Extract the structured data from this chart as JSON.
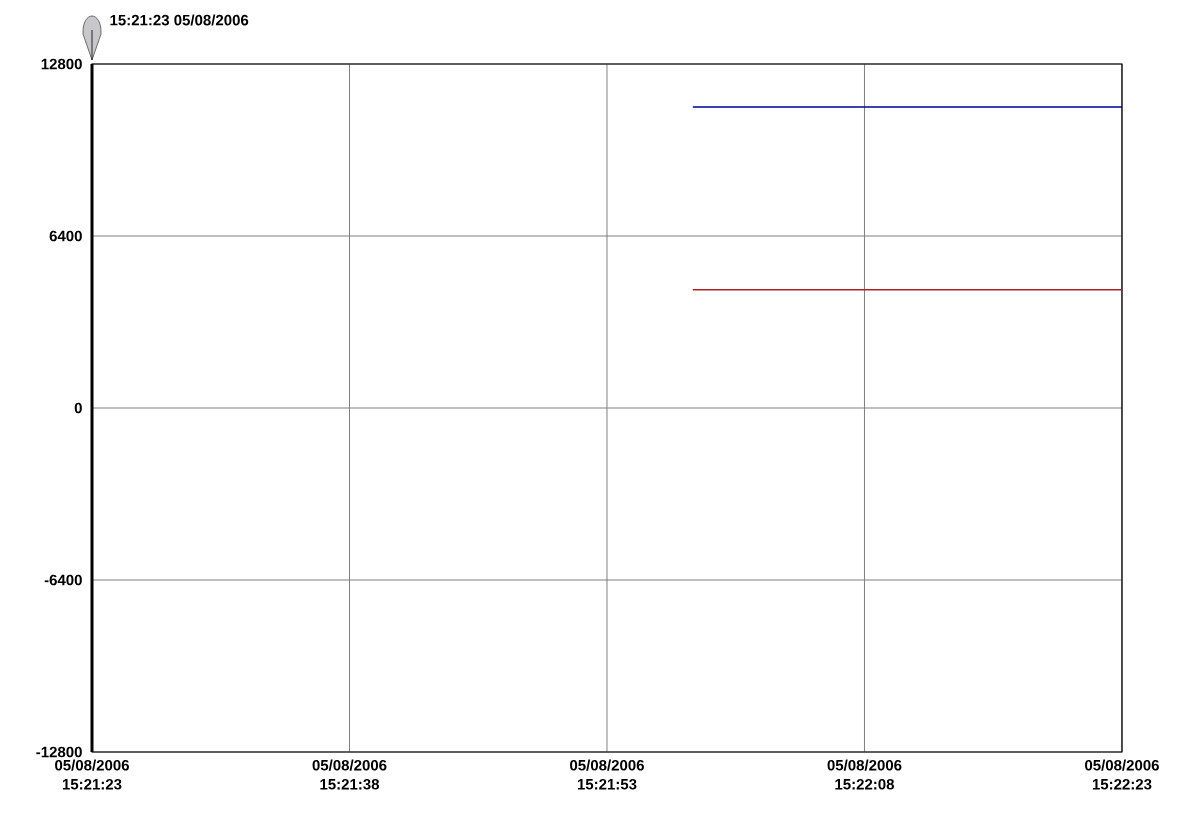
{
  "chart_data": {
    "type": "line",
    "annotations": [
      "15:21:23 05/08/2006"
    ],
    "x": [
      "2006-05-08T15:21:58",
      "2006-05-08T15:22:23"
    ],
    "series": [
      {
        "color": "#000099",
        "values": [
          11200,
          11200
        ]
      },
      {
        "color": "#aa2222",
        "values": [
          4400,
          4400
        ]
      }
    ],
    "xlim": [
      "2006-05-08T15:21:23",
      "2006-05-08T15:22:23"
    ],
    "xticks": [
      {
        "value": "2006-05-08T15:21:23",
        "label": "05/08/2006 15:21:23"
      },
      {
        "value": "2006-05-08T15:21:38",
        "label": "05/08/2006 15:21:38"
      },
      {
        "value": "2006-05-08T15:21:53",
        "label": "05/08/2006 15:21:53"
      },
      {
        "value": "2006-05-08T15:22:08",
        "label": "05/08/2006 15:22:08"
      },
      {
        "value": "2006-05-08T15:22:23",
        "label": "05/08/2006 15:22:23"
      }
    ],
    "ylim": [
      -12800,
      12800
    ],
    "yticks": [
      -12800,
      -6400,
      0,
      6400,
      12800
    ],
    "grid": true,
    "marker": "none",
    "line_style": "solid"
  }
}
